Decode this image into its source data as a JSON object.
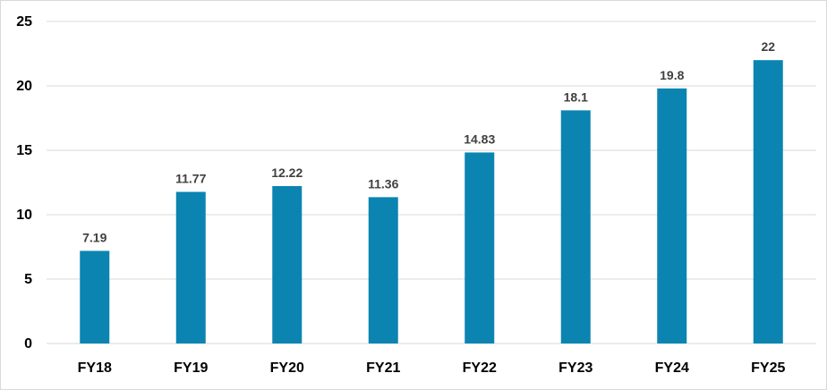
{
  "chart_data": {
    "type": "bar",
    "categories": [
      "FY18",
      "FY19",
      "FY20",
      "FY21",
      "FY22",
      "FY23",
      "FY24",
      "FY25"
    ],
    "series": [
      {
        "values": [
          7.19,
          11.77,
          12.22,
          11.36,
          14.83,
          18.1,
          19.8,
          22
        ],
        "labels": [
          "7.19",
          "11.77",
          "12.22",
          "11.36",
          "14.83",
          "18.1",
          "19.8",
          "22"
        ]
      }
    ],
    "ylim": [
      0,
      25
    ],
    "yticks": [
      0,
      5,
      10,
      15,
      20,
      25
    ],
    "grid": true,
    "legend": "none",
    "bar_color": "#0b84b1"
  }
}
